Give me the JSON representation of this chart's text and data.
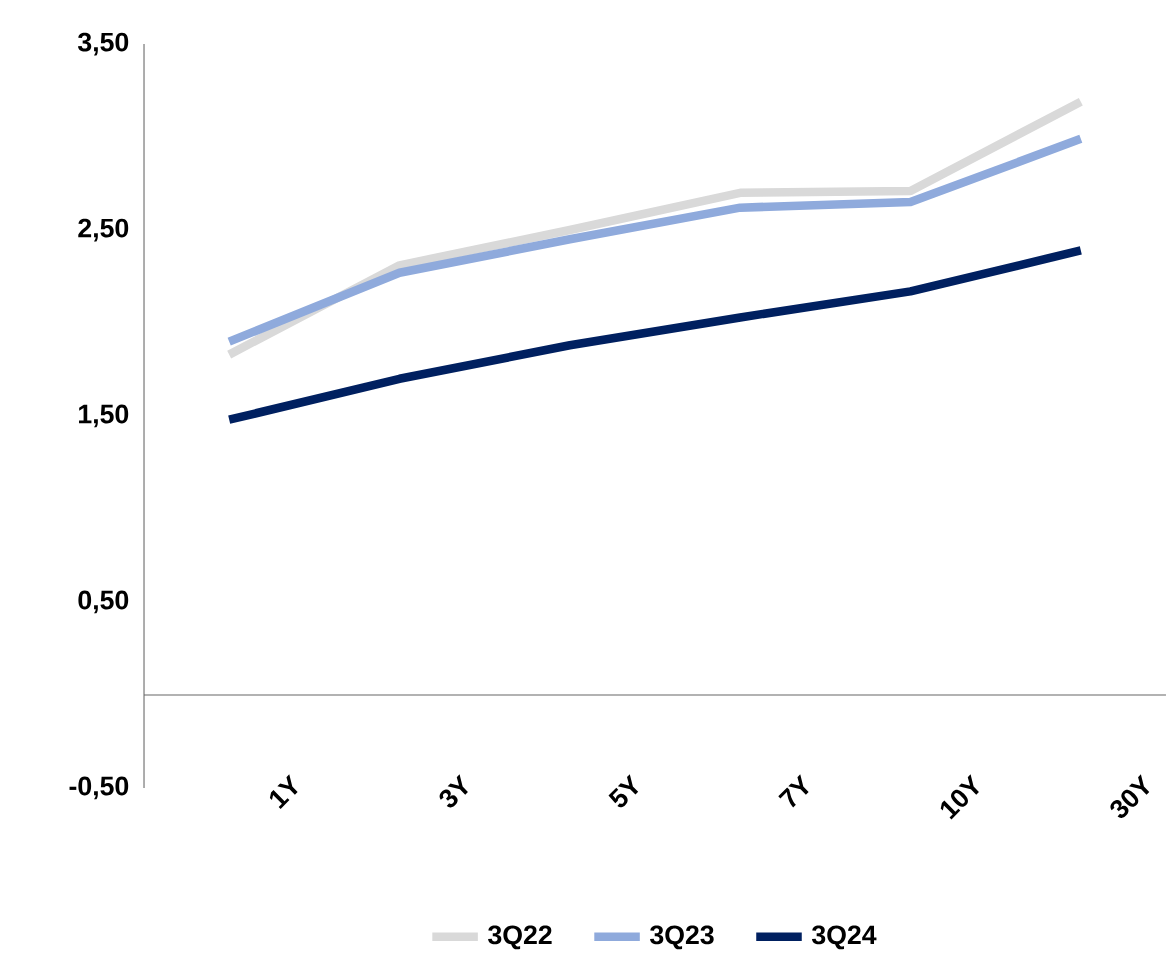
{
  "chart_data": {
    "type": "line",
    "categories": [
      "1Y",
      "3Y",
      "5Y",
      "7Y",
      "10Y",
      "30Y"
    ],
    "series": [
      {
        "name": "3Q22",
        "color": "#d9d9d9",
        "values": [
          1.83,
          2.31,
          2.5,
          2.7,
          2.71,
          3.19
        ]
      },
      {
        "name": "3Q23",
        "color": "#8faadc",
        "values": [
          1.9,
          2.27,
          2.45,
          2.62,
          2.65,
          2.99
        ]
      },
      {
        "name": "3Q24",
        "color": "#002060",
        "values": [
          1.48,
          1.7,
          1.88,
          2.03,
          2.17,
          2.39
        ]
      }
    ],
    "ylim": [
      -0.5,
      3.5
    ],
    "yticks": [
      {
        "value": -0.5,
        "label": "-0,50"
      },
      {
        "value": 0.5,
        "label": "0,50"
      },
      {
        "value": 1.5,
        "label": "1,50"
      },
      {
        "value": 2.5,
        "label": "2,50"
      },
      {
        "value": 3.5,
        "label": "3,50"
      }
    ],
    "legend": "bottom"
  }
}
